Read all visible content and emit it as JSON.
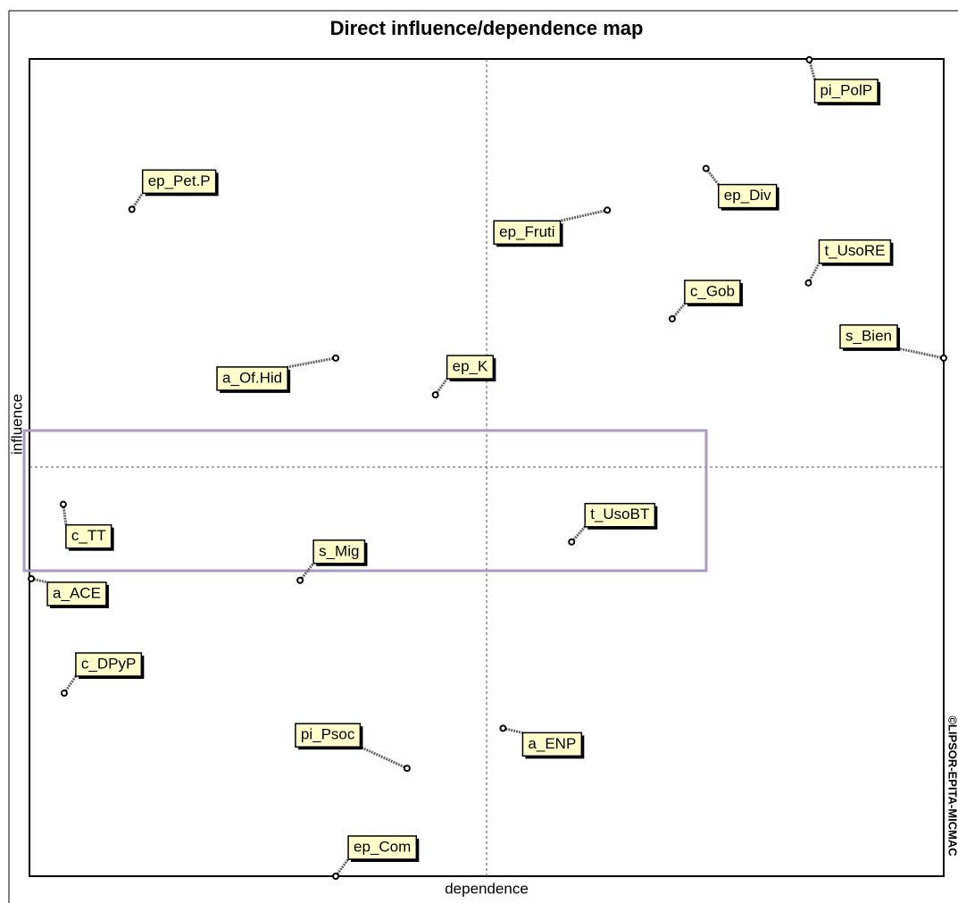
{
  "chart_data": {
    "type": "scatter",
    "title": "Direct influence/dependence map",
    "x_label": "dependence",
    "y_label": "influence",
    "watermark": "©LIPSOR-EPITA-MICMAC",
    "xlim": [
      0,
      100
    ],
    "ylim": [
      0,
      100
    ],
    "color": "#000000",
    "labels": [
      "pi_PolP",
      "ep_Pet.P",
      "ep_Div",
      "ep_Fruti",
      "t_UsoRE",
      "c_Gob",
      "s_Bien",
      "a_Of.Hid",
      "ep_K",
      "c_TT",
      "t_UsoBT",
      "s_Mig",
      "a_ACE",
      "c_DPyP",
      "pi_Psoc",
      "a_ENP",
      "ep_Com"
    ],
    "x": [
      85.3,
      11.2,
      74.0,
      63.2,
      85.2,
      70.3,
      100,
      33.5,
      44.4,
      3.7,
      59.3,
      29.6,
      0.2,
      3.8,
      41.3,
      51.8,
      33.5
    ],
    "y": [
      99.9,
      81.6,
      86.6,
      81.5,
      72.6,
      68.2,
      63.4,
      63.4,
      58.9,
      45.5,
      40.9,
      36.2,
      36.4,
      22.4,
      13.2,
      18.1,
      0
    ]
  }
}
